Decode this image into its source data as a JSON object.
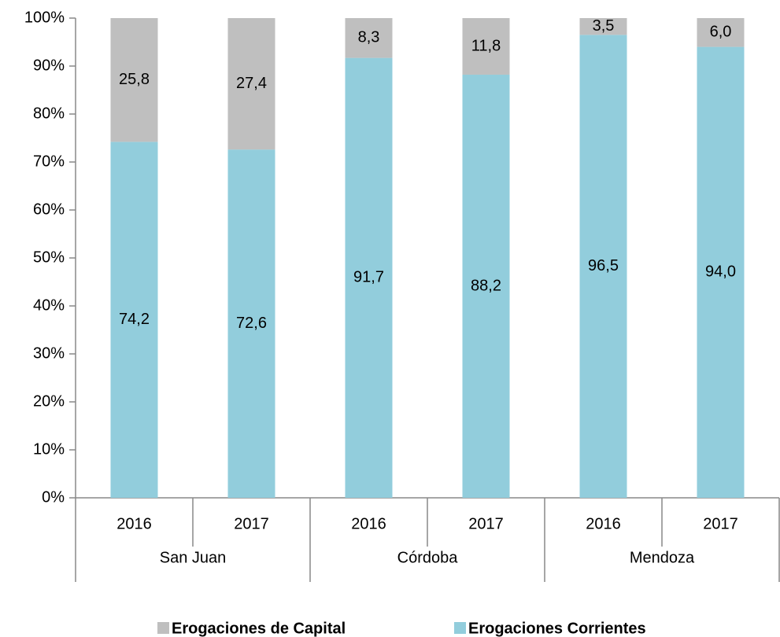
{
  "chart_data": {
    "type": "stacked_bar",
    "categories": [
      "2016",
      "2017",
      "2016",
      "2017",
      "2016",
      "2017"
    ],
    "groups": [
      "San Juan",
      "Córdoba",
      "Mendoza"
    ],
    "series": [
      {
        "name": "Erogaciones de Capital",
        "color": "#bfbfbf",
        "values": [
          25.8,
          27.4,
          8.3,
          11.8,
          3.5,
          6.0
        ],
        "value_labels": [
          "25,8",
          "27,4",
          "8,3",
          "11,8",
          "3,5",
          "6,0"
        ]
      },
      {
        "name": "Erogaciones Corrientes",
        "color": "#92cddc",
        "values": [
          74.2,
          72.6,
          91.7,
          88.2,
          96.5,
          94.0
        ],
        "value_labels": [
          "74,2",
          "72,6",
          "91,7",
          "88,2",
          "96,5",
          "94,0"
        ]
      }
    ],
    "ylim": [
      0,
      100
    ],
    "yticks": [
      {
        "value": 0,
        "label": "0%"
      },
      {
        "value": 10,
        "label": "10%"
      },
      {
        "value": 20,
        "label": "20%"
      },
      {
        "value": 30,
        "label": "30%"
      },
      {
        "value": 40,
        "label": "40%"
      },
      {
        "value": 50,
        "label": "50%"
      },
      {
        "value": 60,
        "label": "60%"
      },
      {
        "value": 70,
        "label": "70%"
      },
      {
        "value": 80,
        "label": "80%"
      },
      {
        "value": 90,
        "label": "90%"
      },
      {
        "value": 100,
        "label": "100%"
      }
    ],
    "legend": "bottom"
  }
}
